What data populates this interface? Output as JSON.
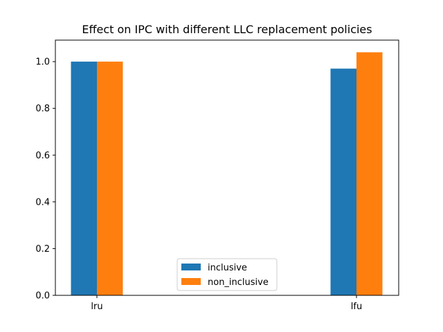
{
  "chart_data": {
    "type": "bar",
    "title": "Effect on IPC with different LLC replacement policies",
    "xlabel": "",
    "ylabel": "",
    "categories": [
      "lru",
      "lfu"
    ],
    "series": [
      {
        "name": "inclusive",
        "values": [
          1.0,
          0.97
        ],
        "color": "#1f77b4"
      },
      {
        "name": "non_inclusive",
        "values": [
          1.0,
          1.04
        ],
        "color": "#ff7f0e"
      }
    ],
    "ylim": [
      0,
      1.092
    ],
    "yticks": [
      "0.0",
      "0.2",
      "0.4",
      "0.6",
      "0.8",
      "1.0"
    ],
    "grid": false,
    "legend_position": "lower center"
  }
}
